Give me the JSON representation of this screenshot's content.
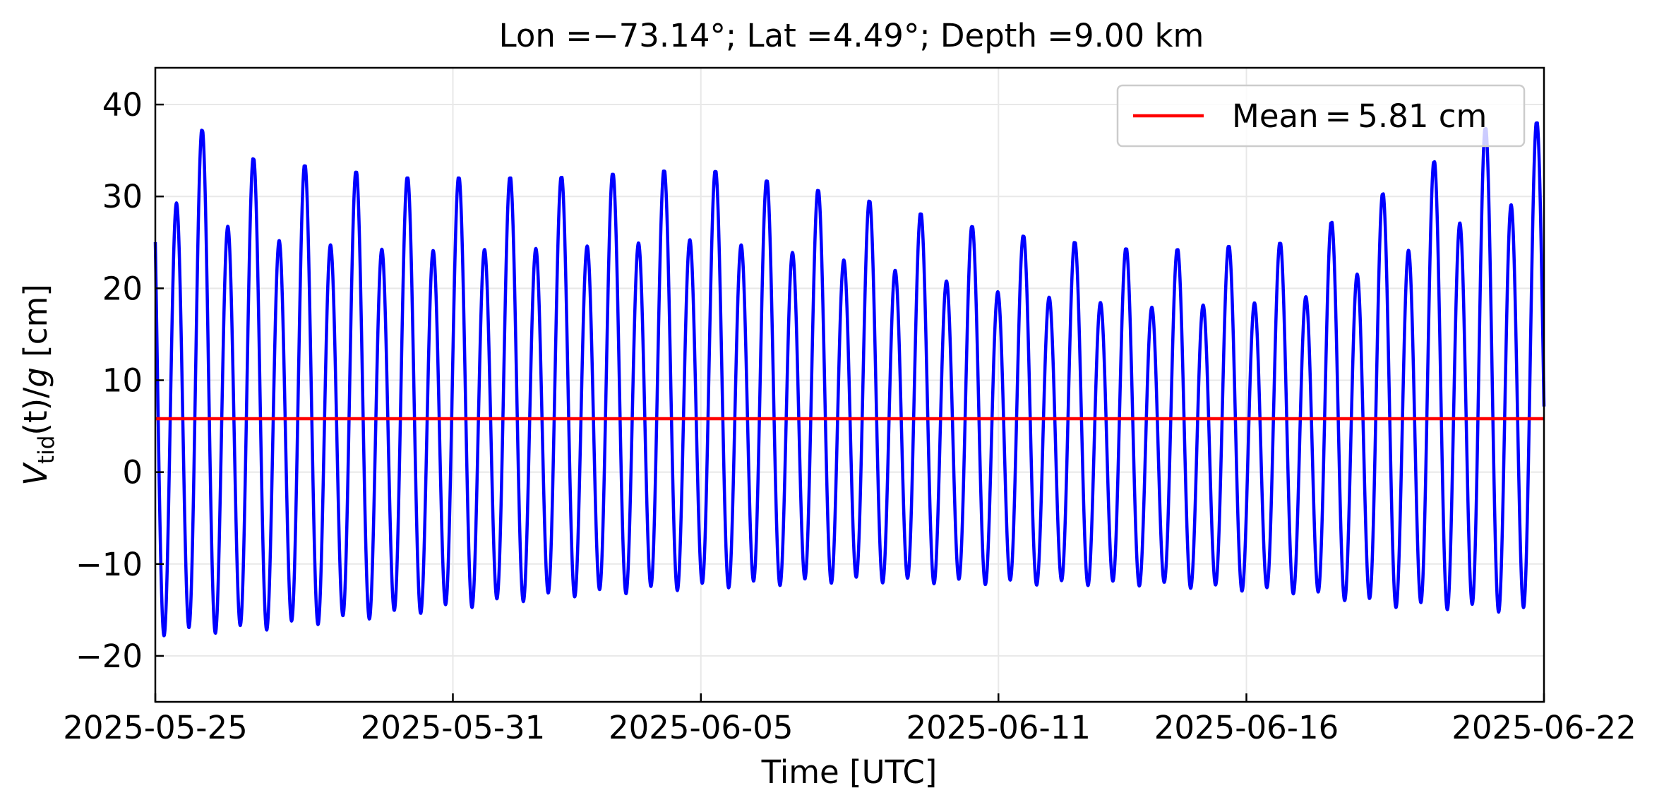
{
  "chart_data": {
    "type": "line",
    "title": "Lon $=-73.14°$; Lat $=4.49°$; Depth $=9.00$ km",
    "title_display": "Lon =−73.14°; Lat =4.49°; Depth =9.00 km",
    "xlabel": "Time [UTC]",
    "ylabel": "V_tid(t)/g [cm]",
    "ylabel_main": "V",
    "ylabel_sub": "tid",
    "ylabel_rest": "(t)/",
    "ylabel_g": "g",
    "ylabel_unit": " [cm]",
    "x_tick_labels": [
      "2025-05-25",
      "2025-05-31",
      "2025-06-05",
      "2025-06-11",
      "2025-06-16",
      "2025-06-22"
    ],
    "y_tick_labels": [
      "−20",
      "−10",
      "0",
      "10",
      "20",
      "30",
      "40"
    ],
    "y_ticks": [
      -20,
      -10,
      0,
      10,
      20,
      30,
      40
    ],
    "xlim": [
      "2025-05-25",
      "2025-06-22"
    ],
    "ylim": [
      -25,
      44
    ],
    "grid": true,
    "legend_position": "upper-right",
    "series": [
      {
        "type": "line",
        "color": "#0000ff",
        "semidiurnal_period_hours": 12.42,
        "approx_peak_to_trough_cm": [
          -22,
          41
        ],
        "envelope_days": [
          0,
          2,
          5,
          8,
          11,
          14,
          17,
          20,
          23,
          25,
          27,
          29
        ],
        "envelope_max_cm": [
          40,
          34,
          32,
          32,
          33,
          30,
          26,
          24,
          25,
          31,
          38,
          38
        ],
        "envelope_min_cm": [
          -22,
          -21,
          -19,
          -17,
          -16,
          -15,
          -15,
          -15,
          -16,
          -18,
          -19,
          -20
        ]
      },
      {
        "name": "Mean = 5.81 cm",
        "type": "hline",
        "color": "#ff0000",
        "value": 5.81
      }
    ],
    "legend_label": "Mean = 5.81 cm"
  }
}
